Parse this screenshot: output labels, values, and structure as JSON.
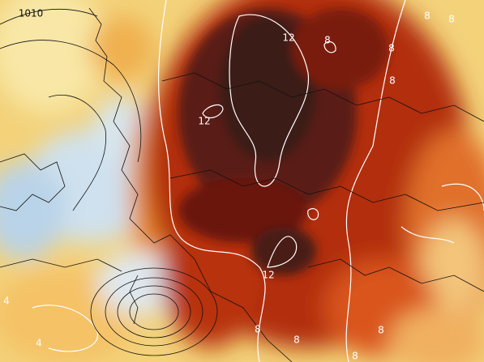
{
  "map": {
    "labels": [
      "1010",
      "12",
      "8",
      "8",
      "8",
      "8",
      "8",
      "12",
      "12",
      "4",
      "4",
      "8",
      "8",
      "8",
      "8"
    ]
  }
}
